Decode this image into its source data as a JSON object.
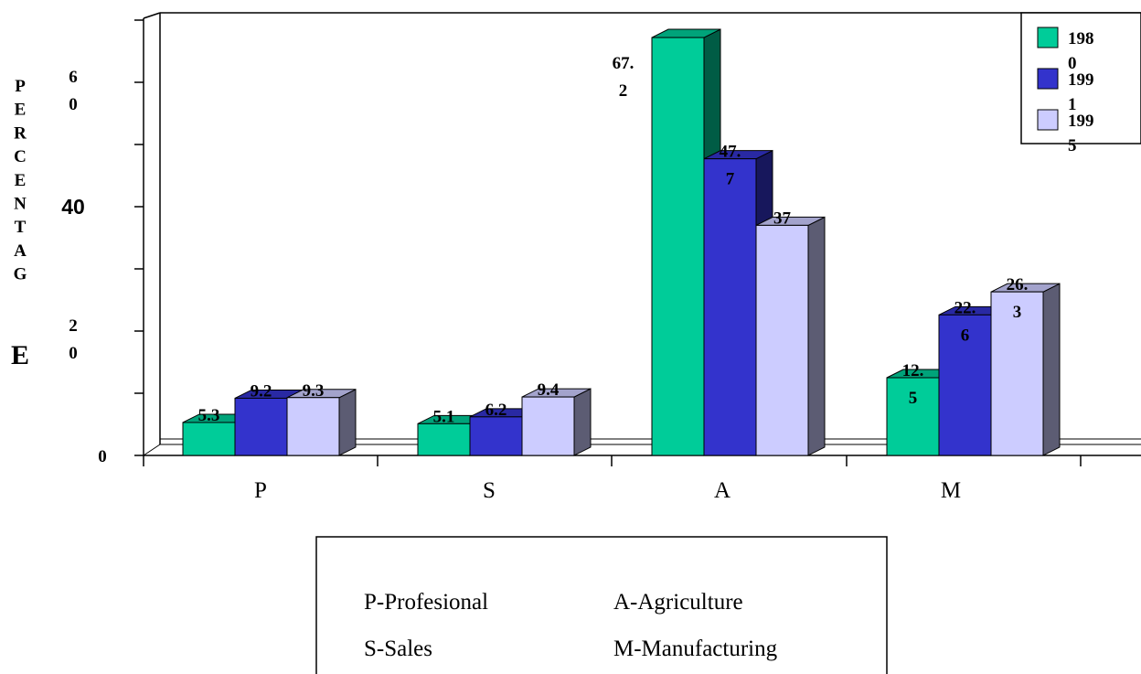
{
  "chart_data": {
    "type": "bar",
    "categories": [
      "P",
      "S",
      "A",
      "M"
    ],
    "series": [
      {
        "name": "1980",
        "color": "#00cc99",
        "values": [
          5.3,
          5.1,
          67.2,
          12.5
        ]
      },
      {
        "name": "1991",
        "color": "#3333cc",
        "values": [
          9.2,
          6.2,
          47.7,
          22.6
        ]
      },
      {
        "name": "1995",
        "color": "#ccccff",
        "values": [
          9.3,
          9.4,
          37,
          26.3
        ]
      }
    ],
    "ylabel": "PERCENTAGE",
    "ylim": [
      0,
      70
    ],
    "grid": false,
    "legend_position": "top-right",
    "data_labels": [
      [
        "5.3",
        "9.2",
        "9.3"
      ],
      [
        "5.1",
        "6.2",
        "9.4"
      ],
      [
        "67.2",
        "47.7",
        "37"
      ],
      [
        "12.5",
        "22.6",
        "26.3"
      ]
    ]
  },
  "y_ticks": [
    {
      "value": 0,
      "label": "0"
    },
    {
      "value": 20,
      "label": "20"
    },
    {
      "value": 40,
      "label": "40"
    },
    {
      "value": 60,
      "label": "60"
    }
  ],
  "key_box": {
    "entries": [
      "P-Profesional",
      "A-Agriculture",
      "S-Sales",
      "M-Manufacturing"
    ]
  },
  "colors": {
    "series_1980": "#00cc99",
    "series_1991": "#3333cc",
    "series_1995": "#ccccff"
  }
}
